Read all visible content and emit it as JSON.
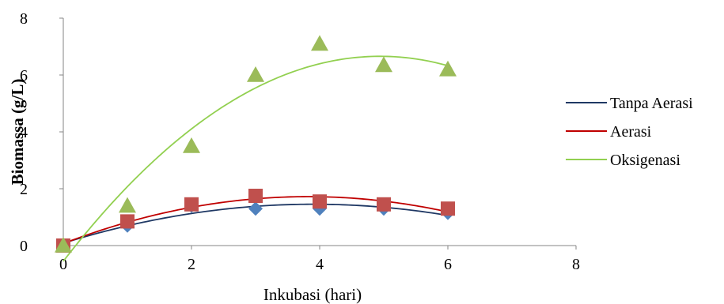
{
  "chart_data": {
    "type": "scatter",
    "title": "",
    "xlabel": "Inkubasi (hari)",
    "ylabel": "Biomassa (g/L)",
    "xlim": [
      0,
      8
    ],
    "ylim": [
      0,
      8
    ],
    "xticks": [
      0,
      2,
      4,
      6,
      8
    ],
    "yticks": [
      0,
      2,
      4,
      6,
      8
    ],
    "grid": false,
    "legend_position": "right",
    "series": [
      {
        "name": "Tanpa Aerasi",
        "marker": "diamond",
        "marker_color": "#4f81bd",
        "line_color": "#1f3864",
        "x": [
          0,
          1,
          2,
          3,
          4,
          5,
          6
        ],
        "y": [
          0,
          0.7,
          1.4,
          1.3,
          1.3,
          1.3,
          1.15
        ],
        "trendline": "polynomial-2"
      },
      {
        "name": "Aerasi",
        "marker": "square",
        "marker_color": "#c0504d",
        "line_color": "#c00000",
        "x": [
          0,
          1,
          2,
          3,
          4,
          5,
          6
        ],
        "y": [
          0,
          0.85,
          1.45,
          1.75,
          1.55,
          1.45,
          1.3
        ],
        "trendline": "polynomial-2"
      },
      {
        "name": "Oksigenasi",
        "marker": "triangle",
        "marker_color": "#9bbb59",
        "line_color": "#92d050",
        "x": [
          0,
          1,
          2,
          3,
          4,
          5,
          6
        ],
        "y": [
          0,
          1.4,
          3.5,
          6.0,
          7.1,
          6.35,
          6.2
        ],
        "trendline": "polynomial-2"
      }
    ]
  }
}
